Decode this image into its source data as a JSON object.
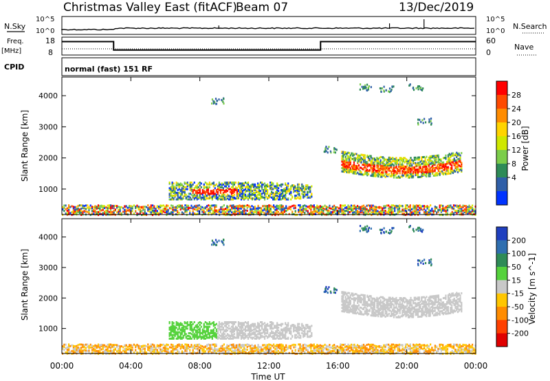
{
  "header": {
    "title": "Christmas Valley East (fitACF)",
    "beam": "Beam 07",
    "date": "13/Dec/2019"
  },
  "top_panels": {
    "nsky_label": "N.Sky",
    "nsearch_label": "N.Search",
    "nsky_ticks": [
      "10^5",
      "10^0"
    ],
    "nsky_right_ticks": [
      "10^5",
      "10^0"
    ],
    "freq_label": "Freq.",
    "freq_unit": "[MHz]",
    "freq_ticks": [
      "18",
      "8"
    ],
    "nave_ticks": [
      "60",
      "0"
    ],
    "nave_label": "Nave",
    "cpid_label": "CPID",
    "cpid_text": "normal (fast) 151 RF"
  },
  "axes": {
    "ylabel": "Slant Range [km]",
    "yticks": [
      "4000",
      "3000",
      "2000",
      "1000"
    ],
    "xticks": [
      "00:00",
      "04:00",
      "08:00",
      "12:00",
      "16:00",
      "20:00",
      "00:00"
    ],
    "xlabel": "Time UT"
  },
  "power_colorbar": {
    "label": "Power [dB]",
    "ticks": [
      "28",
      "24",
      "20",
      "16",
      "12",
      "8",
      "4"
    ],
    "colors": [
      "#ff0000",
      "#ff4a00",
      "#ff8c00",
      "#ffd400",
      "#cfe800",
      "#7ccd4a",
      "#2e8b57",
      "#2f5fa8",
      "#0033ff"
    ]
  },
  "velocity_colorbar": {
    "label": "Velocity [m s^-1]",
    "ticks": [
      "200",
      "100",
      "50",
      "15",
      "-15",
      "-50",
      "-100",
      "-200"
    ],
    "colors": [
      "#1f3fbf",
      "#2f6fb0",
      "#2e8b57",
      "#55d23c",
      "#c8c8c8",
      "#ffc600",
      "#ff8c00",
      "#ff4000",
      "#e00000"
    ]
  },
  "chart_data": {
    "type": "heatmap",
    "x_range_hours": [
      0,
      24
    ],
    "y_range_km": [
      180,
      4600
    ],
    "freq_steps": [
      {
        "start": 0,
        "end": 3,
        "freq_mhz": 15.5
      },
      {
        "start": 3,
        "end": 15,
        "freq_mhz": 10.8
      },
      {
        "start": 15,
        "end": 24,
        "freq_mhz": 15.5
      }
    ],
    "scatter_regions": [
      {
        "t0": 7.5,
        "t1": 10.5,
        "r0": 800,
        "r1": 1100,
        "power": "high",
        "velocity": "positive-small"
      },
      {
        "t0": 16.5,
        "t1": 22.0,
        "r0": 1500,
        "r1": 2300,
        "power": "high",
        "velocity": "near-zero"
      },
      {
        "t0": 0,
        "t1": 24,
        "r0": 200,
        "r1": 500,
        "power": "mixed",
        "velocity": "negative-small"
      }
    ]
  }
}
